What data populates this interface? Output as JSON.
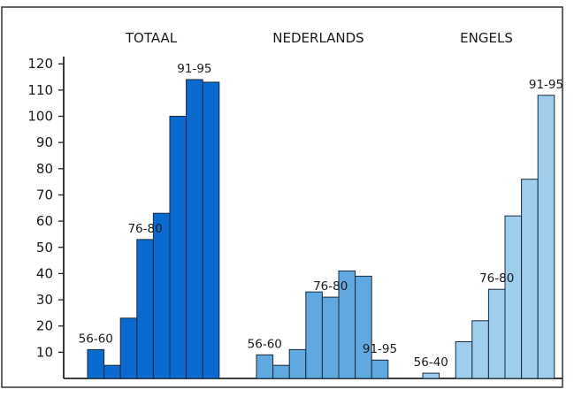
{
  "chart_data": {
    "type": "bar",
    "yticks": [
      10,
      20,
      30,
      40,
      50,
      60,
      70,
      80,
      90,
      100,
      110,
      120
    ],
    "ylim": [
      0,
      123
    ],
    "groups": [
      {
        "title": "TOTAAL",
        "color": "#0a6ad0",
        "values": [
          11,
          5,
          23,
          53,
          63,
          100,
          114,
          113
        ],
        "annotations": [
          {
            "text": "56-60",
            "bar": 0
          },
          {
            "text": "76-80",
            "bar": 3
          },
          {
            "text": "91-95",
            "bar": 6
          }
        ]
      },
      {
        "title": "NEDERLANDS",
        "color": "#5fa9e0",
        "values": [
          9,
          5,
          11,
          33,
          31,
          41,
          39,
          7
        ],
        "annotations": [
          {
            "text": "56-60",
            "bar": 0
          },
          {
            "text": "76-80",
            "bar": 4
          },
          {
            "text": "91-95",
            "bar": 7
          }
        ]
      },
      {
        "title": "ENGELS",
        "color": "#9ecdee",
        "values": [
          2,
          0,
          14,
          22,
          34,
          62,
          76,
          108
        ],
        "annotations": [
          {
            "text": "56-40",
            "bar": 0
          },
          {
            "text": "76-80",
            "bar": 4
          },
          {
            "text": "91-95",
            "bar": 7
          }
        ]
      }
    ],
    "grid": false,
    "legend": "none"
  }
}
